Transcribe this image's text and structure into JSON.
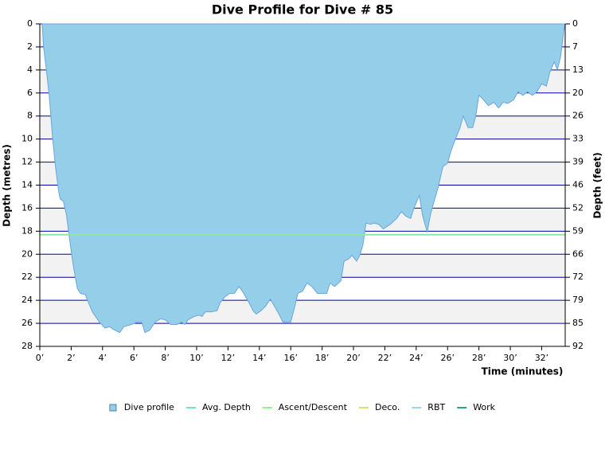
{
  "chart_data": {
    "type": "area",
    "title": "Dive Profile for Dive # 85",
    "x_label": "Time (minutes)",
    "y_label": "Depth (metres)",
    "y2_label": "Depth (feet)",
    "invert_y": true,
    "grid": true,
    "xlim": [
      0,
      33.5
    ],
    "ylim": [
      0,
      28
    ],
    "y2lim": [
      0,
      91.86
    ],
    "xticks": [
      {
        "value": 0,
        "label": "0’"
      },
      {
        "value": 2,
        "label": "2’"
      },
      {
        "value": 4,
        "label": "4’"
      },
      {
        "value": 6,
        "label": "6’"
      },
      {
        "value": 8,
        "label": "8’"
      },
      {
        "value": 10,
        "label": "10’"
      },
      {
        "value": 12,
        "label": "12’"
      },
      {
        "value": 14,
        "label": "14’"
      },
      {
        "value": 16,
        "label": "16’"
      },
      {
        "value": 18,
        "label": "18’"
      },
      {
        "value": 20,
        "label": "20’"
      },
      {
        "value": 22,
        "label": "22’"
      },
      {
        "value": 24,
        "label": "24’"
      },
      {
        "value": 26,
        "label": "26’"
      },
      {
        "value": 28,
        "label": "28’"
      },
      {
        "value": 30,
        "label": "30’"
      },
      {
        "value": 32,
        "label": "32’"
      }
    ],
    "yticks": [
      0,
      2,
      4,
      6,
      8,
      10,
      12,
      14,
      16,
      18,
      20,
      22,
      24,
      26,
      28
    ],
    "y2ticks": [
      0,
      {
        "value": 6.56,
        "label": "7"
      },
      {
        "value": 13.12,
        "label": "13"
      },
      {
        "value": 19.69,
        "label": "20"
      },
      {
        "value": 26.25,
        "label": "26"
      },
      {
        "value": 32.81,
        "label": "33"
      },
      {
        "value": 39.37,
        "label": "39"
      },
      {
        "value": 45.93,
        "label": "46"
      },
      {
        "value": 52.49,
        "label": "52"
      },
      {
        "value": 59.06,
        "label": "59"
      },
      {
        "value": 65.62,
        "label": "66"
      },
      {
        "value": 72.18,
        "label": "72"
      },
      {
        "value": 78.74,
        "label": "79"
      },
      {
        "value": 85.3,
        "label": "85"
      },
      {
        "value": 91.86,
        "label": "92"
      }
    ],
    "x": [
      0.15,
      0.25,
      0.4,
      0.6,
      0.8,
      1.0,
      1.2,
      1.3,
      1.5,
      1.7,
      1.9,
      2.1,
      2.3,
      2.4,
      2.6,
      2.9,
      3.1,
      3.35,
      3.55,
      3.8,
      4.15,
      4.45,
      4.8,
      5.1,
      5.35,
      5.85,
      6.2,
      6.5,
      6.7,
      7.0,
      7.35,
      7.7,
      8.0,
      8.35,
      8.75,
      9.05,
      9.25,
      9.45,
      9.85,
      10.15,
      10.35,
      10.55,
      10.95,
      11.3,
      11.5,
      11.8,
      12.1,
      12.4,
      12.7,
      13.0,
      13.3,
      13.6,
      13.8,
      14.1,
      14.4,
      14.7,
      15.0,
      15.25,
      15.5,
      16.0,
      16.25,
      16.45,
      16.75,
      17.05,
      17.35,
      17.7,
      18.3,
      18.5,
      18.8,
      19.2,
      19.4,
      19.7,
      19.9,
      20.2,
      20.4,
      20.6,
      20.8,
      21.1,
      21.3,
      21.6,
      21.9,
      22.35,
      22.75,
      23.05,
      23.35,
      23.65,
      23.85,
      24.2,
      24.4,
      24.7,
      24.9,
      25.1,
      25.4,
      25.7,
      26.0,
      26.2,
      26.5,
      26.8,
      27.0,
      27.3,
      27.6,
      27.8,
      28.0,
      28.3,
      28.6,
      28.95,
      29.25,
      29.55,
      29.85,
      30.2,
      30.5,
      30.8,
      31.1,
      31.4,
      31.7,
      32.0,
      32.3,
      32.5,
      32.8,
      33.0,
      33.2,
      33.4,
      33.5
    ],
    "series": [
      {
        "name": "Dive profile",
        "color": "#95cee9",
        "style": "area",
        "values": [
          0,
          2.1,
          3.8,
          6.2,
          9.7,
          12.4,
          14.5,
          15.2,
          15.4,
          16.6,
          18.7,
          20.7,
          22.3,
          23.0,
          23.4,
          23.5,
          24.2,
          25.0,
          25.4,
          25.9,
          26.4,
          26.3,
          26.6,
          26.8,
          26.3,
          26.1,
          25.9,
          25.9,
          26.8,
          26.6,
          25.9,
          25.6,
          25.7,
          26.1,
          26.1,
          25.9,
          26.1,
          25.7,
          25.4,
          25.3,
          25.4,
          25.0,
          25.0,
          24.9,
          24.2,
          23.7,
          23.4,
          23.4,
          22.8,
          23.4,
          24.1,
          24.9,
          25.2,
          24.9,
          24.5,
          23.9,
          24.6,
          25.2,
          25.9,
          25.9,
          24.6,
          23.4,
          23.2,
          22.5,
          22.8,
          23.4,
          23.4,
          22.5,
          22.8,
          22.3,
          20.6,
          20.4,
          20.1,
          20.6,
          20.1,
          19.2,
          17.3,
          17.4,
          17.3,
          17.4,
          17.8,
          17.4,
          16.9,
          16.3,
          16.7,
          16.9,
          16.0,
          14.9,
          16.6,
          18.1,
          16.6,
          15.6,
          14.2,
          12.4,
          12.1,
          11.1,
          10.0,
          9.0,
          8.0,
          9.0,
          9.0,
          8.0,
          6.2,
          6.6,
          7.1,
          6.8,
          7.3,
          6.8,
          6.9,
          6.6,
          5.9,
          6.2,
          5.9,
          6.2,
          5.9,
          5.2,
          5.4,
          4.3,
          3.3,
          4.0,
          2.9,
          0.7,
          0
        ]
      },
      {
        "name": "Avg. Depth",
        "color": "#6fe3c4",
        "line_color": "#8ee6a8",
        "style": "hline",
        "value": 18.3
      },
      {
        "name": "Ascent/Descent",
        "color": "#90ee90",
        "style": "line"
      },
      {
        "name": "Deco.",
        "color": "#d6e36a",
        "style": "line"
      },
      {
        "name": "RBT",
        "color": "#9ad7f2",
        "style": "line"
      },
      {
        "name": "Work",
        "color": "#22a88e",
        "style": "line"
      }
    ]
  }
}
